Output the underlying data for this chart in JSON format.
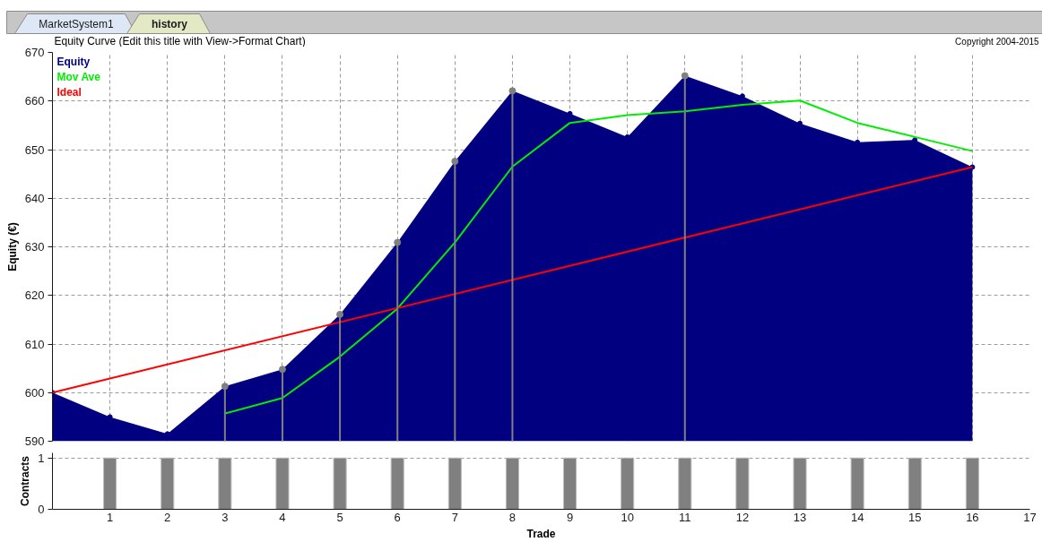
{
  "chart_data": [
    {
      "type": "area",
      "title": "Equity Curve (Edit this title with View->Format Chart)",
      "ylabel": "Equity (€)",
      "annotations": [
        "MarketSystem1",
        "history",
        "Copyright 2004-2015"
      ],
      "xlim": [
        0,
        17
      ],
      "xticks": [
        1,
        2,
        3,
        4,
        5,
        6,
        7,
        8,
        9,
        10,
        11,
        12,
        13,
        14,
        15,
        16,
        17
      ],
      "ylim": [
        590,
        670
      ],
      "yticks": [
        590,
        600,
        610,
        620,
        630,
        640,
        650,
        660,
        670
      ],
      "grid": true,
      "legend": "top left",
      "tick_labels": "y",
      "series": [
        {
          "name": "Equity",
          "type": "area",
          "color": "#000080",
          "marker": "circle",
          "x": [
            0,
            1,
            2,
            3,
            4,
            5,
            6,
            7,
            8,
            9,
            10,
            11,
            12,
            13,
            14,
            15,
            16
          ],
          "values": [
            600,
            595.0,
            591.5,
            601.3,
            604.8,
            616.1,
            630.9,
            647.6,
            662.1,
            657.4,
            652.6,
            665.2,
            661.0,
            655.4,
            651.5,
            652.0,
            646.4
          ]
        },
        {
          "name": "Mov Ave",
          "type": "line",
          "color": "#00ee00",
          "x": [
            3,
            4,
            5,
            6,
            7,
            8,
            9,
            10,
            11,
            12,
            13,
            14,
            15,
            16
          ],
          "values": [
            595.7,
            598.9,
            607.4,
            617.3,
            630.9,
            646.5,
            655.5,
            657.1,
            657.9,
            659.2,
            660.1,
            655.5,
            652.6,
            649.7
          ]
        },
        {
          "name": "Ideal",
          "type": "line",
          "color": "#ff0000",
          "x": [
            0,
            16
          ],
          "values": [
            600,
            646.4
          ]
        },
        {
          "type": "lollipop",
          "color": "#808080",
          "x": [
            3,
            4,
            5,
            6,
            7,
            8,
            11
          ],
          "values": [
            601.3,
            604.8,
            616.1,
            630.9,
            647.6,
            662.1,
            665.2
          ]
        }
      ]
    },
    {
      "type": "bar",
      "ylabel": "Contracts",
      "xlabel": "Trade",
      "x": [
        1,
        2,
        3,
        4,
        5,
        6,
        7,
        8,
        9,
        10,
        11,
        12,
        13,
        14,
        15,
        16
      ],
      "values": [
        1,
        1,
        1,
        1,
        1,
        1,
        1,
        1,
        1,
        1,
        1,
        1,
        1,
        1,
        1,
        1
      ],
      "color": "#808080",
      "xlim": [
        0,
        17
      ],
      "xticks": [
        1,
        2,
        3,
        4,
        5,
        6,
        7,
        8,
        9,
        10,
        11,
        12,
        13,
        14,
        15,
        16,
        17
      ],
      "ylim": [
        0,
        1.1
      ],
      "yticks": [
        0,
        1
      ],
      "grid": "y"
    }
  ]
}
